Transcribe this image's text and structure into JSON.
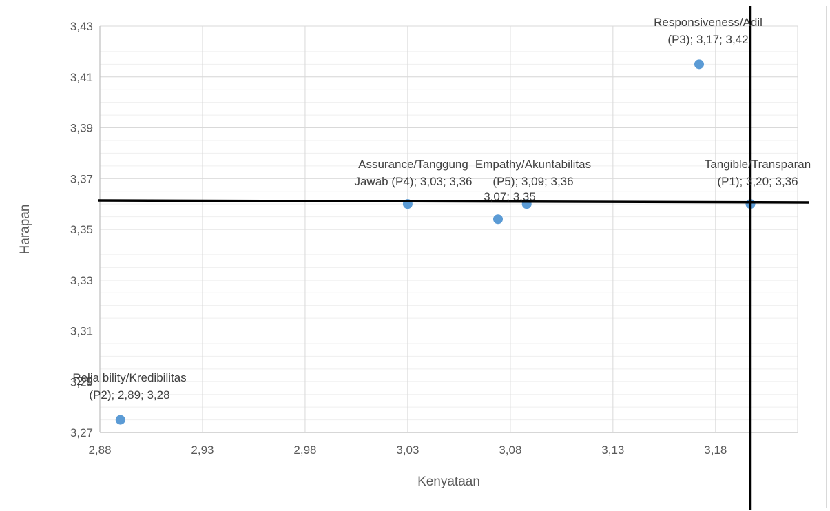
{
  "chart_data": {
    "type": "scatter",
    "xlabel": "Kenyataan",
    "ylabel": "Harapan",
    "xlim": [
      2.88,
      3.22
    ],
    "ylim": [
      3.27,
      3.43
    ],
    "x_ticks": [
      "2,88",
      "2,93",
      "2,98",
      "3,03",
      "3,08",
      "3,13",
      "3,18"
    ],
    "y_ticks": [
      "3,27",
      "3,29",
      "3,31",
      "3,33",
      "3,35",
      "3,37",
      "3,39",
      "3,41",
      "3,43"
    ],
    "grid": true,
    "marker_color": "#5b9bd5",
    "reference_lines": {
      "x": 3.197,
      "y": 3.361
    },
    "points": [
      {
        "x": 2.89,
        "y": 3.275,
        "label_lines": [
          "Relia   bility/Kredibilitas",
          "(P2); 2,89; 3,28"
        ],
        "overlay": "2   9"
      },
      {
        "x": 3.03,
        "y": 3.36,
        "label_lines": [
          "Assurance/Tanggung",
          "Jawab (P4); 3,03; 3,36"
        ]
      },
      {
        "x": 3.074,
        "y": 3.354,
        "label_lines": [
          "3,07; 3,35"
        ]
      },
      {
        "x": 3.088,
        "y": 3.36,
        "label_lines": [
          "Empathy/Akuntabilitas",
          "(P5); 3,09; 3,36"
        ]
      },
      {
        "x": 3.172,
        "y": 3.415,
        "label_lines": [
          "Responsiveness/Adil",
          "(P3); 3,17; 3,42"
        ]
      },
      {
        "x": 3.197,
        "y": 3.36,
        "label_lines": [
          "Tangible/Transparan",
          "(P1); 3,20; 3,36"
        ]
      }
    ]
  }
}
